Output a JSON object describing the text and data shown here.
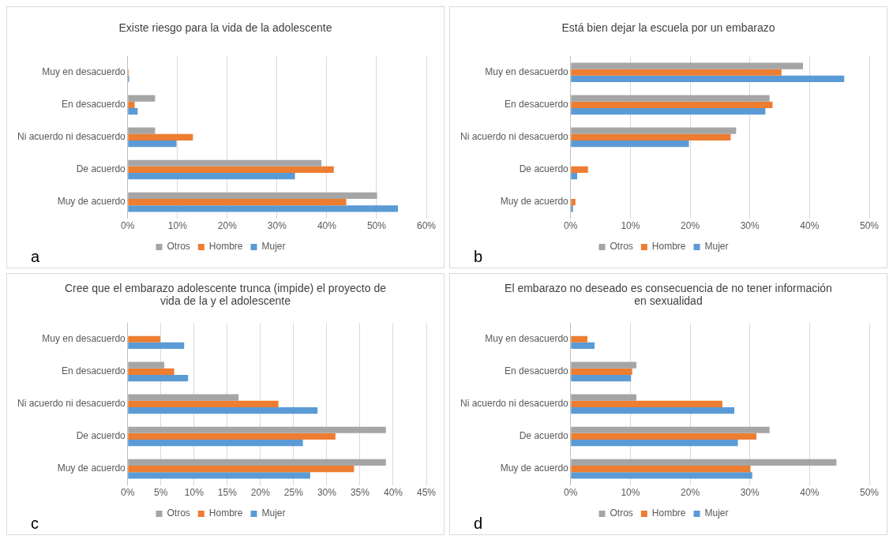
{
  "chart_data": [
    {
      "type": "bar",
      "orientation": "horizontal",
      "title": "Existe riesgo para la vida de la adolescente",
      "categories": [
        "Muy en desacuerdo",
        "En desacuerdo",
        "Ni acuerdo ni desacuerdo",
        "De acuerdo",
        "Muy de acuerdo"
      ],
      "series": [
        {
          "name": "Otros",
          "color": "#a5a5a5",
          "values": [
            0,
            5.5,
            5.5,
            38.9,
            50.1
          ]
        },
        {
          "name": "Hombre",
          "color": "#ed7d31",
          "values": [
            0.2,
            1.4,
            13.1,
            41.4,
            43.9
          ]
        },
        {
          "name": "Mujer",
          "color": "#5b9bd5",
          "values": [
            0.3,
            2.0,
            9.8,
            33.6,
            54.3
          ]
        }
      ],
      "xlim": [
        0,
        60
      ],
      "xticks": [
        {
          "value": 0,
          "label": "0%"
        },
        {
          "value": 10,
          "label": "10%"
        },
        {
          "value": 20,
          "label": "20%"
        },
        {
          "value": 30,
          "label": "30%"
        },
        {
          "value": 40,
          "label": "40%"
        },
        {
          "value": 50,
          "label": "50%"
        },
        {
          "value": 60,
          "label": "60%"
        }
      ],
      "grid": "x",
      "legend": "bottom",
      "annotations": [
        "a"
      ]
    },
    {
      "type": "bar",
      "orientation": "horizontal",
      "title": "Está bien dejar la escuela por un embarazo",
      "categories": [
        "Muy en desacuerdo",
        "En desacuerdo",
        "Ni acuerdo ni desacuerdo",
        "De acuerdo",
        "Muy de acuerdo"
      ],
      "series": [
        {
          "name": "Otros",
          "color": "#a5a5a5",
          "values": [
            38.9,
            33.3,
            27.7,
            0,
            0
          ]
        },
        {
          "name": "Hombre",
          "color": "#ed7d31",
          "values": [
            35.3,
            33.8,
            26.8,
            2.9,
            0.8
          ]
        },
        {
          "name": "Mujer",
          "color": "#5b9bd5",
          "values": [
            45.8,
            32.6,
            19.8,
            1.1,
            0.4
          ]
        }
      ],
      "xlim": [
        0,
        50
      ],
      "xticks": [
        {
          "value": 0,
          "label": "0%"
        },
        {
          "value": 10,
          "label": "10%"
        },
        {
          "value": 20,
          "label": "20%"
        },
        {
          "value": 30,
          "label": "30%"
        },
        {
          "value": 40,
          "label": "40%"
        },
        {
          "value": 50,
          "label": "50%"
        }
      ],
      "grid": "x",
      "legend": "bottom",
      "annotations": [
        "b"
      ]
    },
    {
      "type": "bar",
      "orientation": "horizontal",
      "title": "Cree que el embarazo adolescente trunca (impide) el proyecto de vida de la y el adolescente",
      "categories": [
        "Muy en desacuerdo",
        "En desacuerdo",
        "Ni acuerdo ni desacuerdo",
        "De acuerdo",
        "Muy de acuerdo"
      ],
      "series": [
        {
          "name": "Otros",
          "color": "#a5a5a5",
          "values": [
            0,
            5.5,
            16.7,
            38.9,
            38.9
          ]
        },
        {
          "name": "Hombre",
          "color": "#ed7d31",
          "values": [
            4.9,
            7.0,
            22.7,
            31.3,
            34.1
          ]
        },
        {
          "name": "Mujer",
          "color": "#5b9bd5",
          "values": [
            8.5,
            9.1,
            28.6,
            26.4,
            27.5
          ]
        }
      ],
      "xlim": [
        0,
        45
      ],
      "xticks": [
        {
          "value": 0,
          "label": "0%"
        },
        {
          "value": 5,
          "label": "5%"
        },
        {
          "value": 10,
          "label": "10%"
        },
        {
          "value": 15,
          "label": "15%"
        },
        {
          "value": 20,
          "label": "20%"
        },
        {
          "value": 25,
          "label": "25%"
        },
        {
          "value": 30,
          "label": "30%"
        },
        {
          "value": 35,
          "label": "35%"
        },
        {
          "value": 40,
          "label": "40%"
        },
        {
          "value": 45,
          "label": "45%"
        }
      ],
      "grid": "x",
      "legend": "bottom",
      "annotations": [
        "c"
      ]
    },
    {
      "type": "bar",
      "orientation": "horizontal",
      "title": "El embarazo no deseado es consecuencia de no tener información en sexualidad",
      "categories": [
        "Muy en desacuerdo",
        "En desacuerdo",
        "Ni acuerdo ni desacuerdo",
        "De acuerdo",
        "Muy de acuerdo"
      ],
      "series": [
        {
          "name": "Otros",
          "color": "#a5a5a5",
          "values": [
            0,
            11.0,
            11.0,
            33.3,
            44.5
          ]
        },
        {
          "name": "Hombre",
          "color": "#ed7d31",
          "values": [
            2.8,
            10.3,
            25.4,
            31.1,
            30.1
          ]
        },
        {
          "name": "Mujer",
          "color": "#5b9bd5",
          "values": [
            4.0,
            10.1,
            27.4,
            28.0,
            30.4
          ]
        }
      ],
      "xlim": [
        0,
        50
      ],
      "xticks": [
        {
          "value": 0,
          "label": "0%"
        },
        {
          "value": 10,
          "label": "10%"
        },
        {
          "value": 20,
          "label": "20%"
        },
        {
          "value": 30,
          "label": "30%"
        },
        {
          "value": 40,
          "label": "40%"
        },
        {
          "value": 50,
          "label": "50%"
        }
      ],
      "grid": "x",
      "legend": "bottom",
      "annotations": [
        "d"
      ]
    }
  ]
}
